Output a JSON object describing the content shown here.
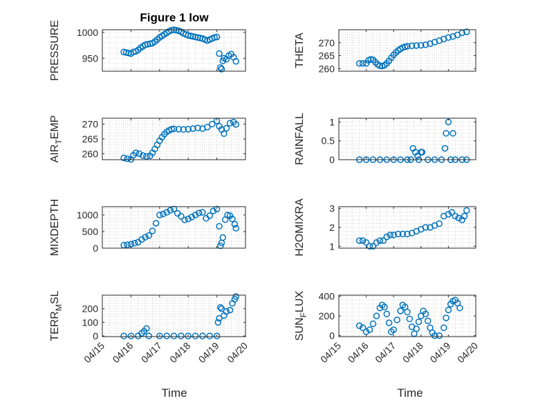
{
  "figure": {
    "title": "Figure 1 low",
    "xlabel": "Time",
    "marker_color": "#0072BD"
  },
  "chart_data": [
    {
      "type": "scatter",
      "title": "Figure 1 low",
      "ylabel": "PRESSURE",
      "xlim": [
        "04/15",
        "04/20"
      ],
      "ylim": [
        925,
        1005
      ],
      "yticks": [
        950,
        1000
      ],
      "yticklabels": [
        "950",
        "1000"
      ],
      "grid": true,
      "points": [
        [
          "04/15 18:00",
          962
        ],
        [
          "04/15 20:00",
          961
        ],
        [
          "04/15 22:00",
          960
        ],
        [
          "04/16 00:00",
          959
        ],
        [
          "04/16 02:00",
          962
        ],
        [
          "04/16 04:00",
          963
        ],
        [
          "04/16 06:00",
          966
        ],
        [
          "04/16 08:00",
          970
        ],
        [
          "04/16 10:00",
          973
        ],
        [
          "04/16 12:00",
          976
        ],
        [
          "04/16 14:00",
          977
        ],
        [
          "04/16 16:00",
          978
        ],
        [
          "04/16 18:00",
          979
        ],
        [
          "04/16 20:00",
          982
        ],
        [
          "04/16 22:00",
          986
        ],
        [
          "04/17 00:00",
          990
        ],
        [
          "04/17 02:00",
          993
        ],
        [
          "04/17 04:00",
          996
        ],
        [
          "04/17 06:00",
          999
        ],
        [
          "04/17 08:00",
          1002
        ],
        [
          "04/17 10:00",
          1004
        ],
        [
          "04/17 12:00",
          1005
        ],
        [
          "04/17 14:00",
          1004
        ],
        [
          "04/17 16:00",
          1003
        ],
        [
          "04/17 18:00",
          1001
        ],
        [
          "04/17 20:00",
          998
        ],
        [
          "04/17 22:00",
          996
        ],
        [
          "04/18 00:00",
          994
        ],
        [
          "04/18 02:00",
          993
        ],
        [
          "04/18 04:00",
          992
        ],
        [
          "04/18 06:00",
          991
        ],
        [
          "04/18 08:00",
          990
        ],
        [
          "04/18 10:00",
          989
        ],
        [
          "04/18 12:00",
          988
        ],
        [
          "04/18 14:00",
          986
        ],
        [
          "04/18 16:00",
          984
        ],
        [
          "04/18 18:00",
          986
        ],
        [
          "04/18 20:00",
          988
        ],
        [
          "04/18 22:00",
          990
        ],
        [
          "04/19 00:00",
          991
        ],
        [
          "04/19 02:00",
          959
        ],
        [
          "04/19 03:00",
          932
        ],
        [
          "04/19 04:00",
          929
        ],
        [
          "04/19 05:00",
          945
        ],
        [
          "04/19 06:00",
          950
        ],
        [
          "04/19 08:00",
          948
        ],
        [
          "04/19 10:00",
          955
        ],
        [
          "04/19 12:00",
          958
        ],
        [
          "04/19 14:00",
          952
        ],
        [
          "04/19 16:00",
          944
        ]
      ]
    },
    {
      "type": "scatter",
      "ylabel": "THETA",
      "xlim": [
        "04/15",
        "04/20"
      ],
      "ylim": [
        259,
        275
      ],
      "yticks": [
        260,
        265,
        270
      ],
      "yticklabels": [
        "260",
        "265",
        "270"
      ],
      "grid": true,
      "points": [
        [
          "04/15 18:00",
          262
        ],
        [
          "04/15 21:00",
          262
        ],
        [
          "04/16 00:00",
          262
        ],
        [
          "04/16 02:00",
          263.2
        ],
        [
          "04/16 04:00",
          263.6
        ],
        [
          "04/16 06:00",
          263.4
        ],
        [
          "04/16 08:00",
          262.5
        ],
        [
          "04/16 10:00",
          261.6
        ],
        [
          "04/16 12:00",
          261.1
        ],
        [
          "04/16 14:00",
          261.0
        ],
        [
          "04/16 16:00",
          261.3
        ],
        [
          "04/16 18:00",
          262.0
        ],
        [
          "04/16 20:00",
          263.0
        ],
        [
          "04/16 22:00",
          264.2
        ],
        [
          "04/17 00:00",
          265.3
        ],
        [
          "04/17 02:00",
          266.2
        ],
        [
          "04/17 04:00",
          267.0
        ],
        [
          "04/17 06:00",
          267.6
        ],
        [
          "04/17 08:00",
          268.1
        ],
        [
          "04/17 10:00",
          268.4
        ],
        [
          "04/17 12:00",
          268.6
        ],
        [
          "04/17 16:00",
          268.8
        ],
        [
          "04/17 20:00",
          268.9
        ],
        [
          "04/18 00:00",
          269.0
        ],
        [
          "04/18 04:00",
          269.2
        ],
        [
          "04/18 08:00",
          269.6
        ],
        [
          "04/18 12:00",
          270.2
        ],
        [
          "04/18 16:00",
          270.8
        ],
        [
          "04/18 20:00",
          271.4
        ],
        [
          "04/19 00:00",
          272.0
        ],
        [
          "04/19 04:00",
          272.4
        ],
        [
          "04/19 08:00",
          273.0
        ],
        [
          "04/19 12:00",
          273.8
        ],
        [
          "04/19 16:00",
          274.2
        ]
      ]
    },
    {
      "type": "scatter",
      "ylabel": "AIR_TEMP",
      "xlim": [
        "04/15",
        "04/20"
      ],
      "ylim": [
        258,
        272
      ],
      "yticks": [
        260,
        265,
        270
      ],
      "yticklabels": [
        "260",
        "265",
        "270"
      ],
      "grid": true,
      "points": [
        [
          "04/15 18:00",
          258.6
        ],
        [
          "04/15 21:00",
          258.3
        ],
        [
          "04/16 00:00",
          258.1
        ],
        [
          "04/16 02:00",
          259.5
        ],
        [
          "04/16 04:00",
          260.3
        ],
        [
          "04/16 07:00",
          260.0
        ],
        [
          "04/16 10:00",
          259.4
        ],
        [
          "04/16 13:00",
          259.1
        ],
        [
          "04/16 16:00",
          259.3
        ],
        [
          "04/16 18:00",
          260.3
        ],
        [
          "04/16 20:00",
          261.6
        ],
        [
          "04/16 22:00",
          263.0
        ],
        [
          "04/17 00:00",
          264.4
        ],
        [
          "04/17 02:00",
          265.6
        ],
        [
          "04/17 04:00",
          266.6
        ],
        [
          "04/17 06:00",
          267.4
        ],
        [
          "04/17 08:00",
          267.9
        ],
        [
          "04/17 10:00",
          268.3
        ],
        [
          "04/17 12:00",
          268.4
        ],
        [
          "04/17 16:00",
          268.3
        ],
        [
          "04/17 20:00",
          268.2
        ],
        [
          "04/18 00:00",
          268.3
        ],
        [
          "04/18 04:00",
          268.5
        ],
        [
          "04/18 08:00",
          268.7
        ],
        [
          "04/18 12:00",
          268.5
        ],
        [
          "04/18 16:00",
          269.0
        ],
        [
          "04/18 20:00",
          270.0
        ],
        [
          "04/19 00:00",
          271.1
        ],
        [
          "04/19 02:00",
          269.3
        ],
        [
          "04/19 04:00",
          268.2
        ],
        [
          "04/19 06:00",
          266.8
        ],
        [
          "04/19 08:00",
          268.6
        ],
        [
          "04/19 11:00",
          270.3
        ],
        [
          "04/19 14:00",
          270.7
        ],
        [
          "04/19 16:00",
          269.9
        ]
      ]
    },
    {
      "type": "scatter",
      "ylabel": "RAINFALL",
      "xlim": [
        "04/15",
        "04/20"
      ],
      "ylim": [
        0,
        1.1
      ],
      "yticks": [
        0,
        0.5,
        1
      ],
      "yticklabels": [
        "0",
        "0.5",
        "1"
      ],
      "grid": true,
      "points": [
        [
          "04/15 18:00",
          0
        ],
        [
          "04/16 00:00",
          0
        ],
        [
          "04/16 06:00",
          0
        ],
        [
          "04/16 12:00",
          0
        ],
        [
          "04/16 18:00",
          0
        ],
        [
          "04/17 00:00",
          0
        ],
        [
          "04/17 06:00",
          0
        ],
        [
          "04/17 12:00",
          0
        ],
        [
          "04/17 15:00",
          0
        ],
        [
          "04/17 17:00",
          0.3
        ],
        [
          "04/17 19:00",
          0.2
        ],
        [
          "04/17 21:00",
          0.1
        ],
        [
          "04/17 22:00",
          0
        ],
        [
          "04/18 00:00",
          0.2
        ],
        [
          "04/18 01:00",
          0.2
        ],
        [
          "04/18 06:00",
          0
        ],
        [
          "04/18 12:00",
          0
        ],
        [
          "04/18 18:00",
          0
        ],
        [
          "04/18 21:00",
          0.3
        ],
        [
          "04/18 22:00",
          0.7
        ],
        [
          "04/19 00:00",
          1.0
        ],
        [
          "04/19 02:00",
          0
        ],
        [
          "04/19 04:00",
          0.7
        ],
        [
          "04/19 06:00",
          0
        ],
        [
          "04/19 12:00",
          0
        ],
        [
          "04/19 16:00",
          0
        ]
      ]
    },
    {
      "type": "scatter",
      "ylabel": "MIXDEPTH",
      "xlim": [
        "04/15",
        "04/20"
      ],
      "ylim": [
        0,
        1250
      ],
      "yticks": [
        0,
        500,
        1000
      ],
      "yticklabels": [
        "0",
        "500",
        "1000"
      ],
      "grid": true,
      "points": [
        [
          "04/15 18:00",
          90
        ],
        [
          "04/15 21:00",
          100
        ],
        [
          "04/16 00:00",
          120
        ],
        [
          "04/16 03:00",
          150
        ],
        [
          "04/16 06:00",
          180
        ],
        [
          "04/16 09:00",
          260
        ],
        [
          "04/16 12:00",
          330
        ],
        [
          "04/16 15:00",
          380
        ],
        [
          "04/16 18:00",
          520
        ],
        [
          "04/16 21:00",
          750
        ],
        [
          "04/17 00:00",
          1000
        ],
        [
          "04/17 03:00",
          1030
        ],
        [
          "04/17 06:00",
          1080
        ],
        [
          "04/17 09:00",
          1140
        ],
        [
          "04/17 12:00",
          1180
        ],
        [
          "04/17 15:00",
          1050
        ],
        [
          "04/17 18:00",
          960
        ],
        [
          "04/17 21:00",
          850
        ],
        [
          "04/18 00:00",
          880
        ],
        [
          "04/18 03:00",
          940
        ],
        [
          "04/18 06:00",
          1000
        ],
        [
          "04/18 09:00",
          1060
        ],
        [
          "04/18 12:00",
          1080
        ],
        [
          "04/18 15:00",
          900
        ],
        [
          "04/18 18:00",
          980
        ],
        [
          "04/18 21:00",
          1120
        ],
        [
          "04/19 00:00",
          1180
        ],
        [
          "04/19 02:00",
          660
        ],
        [
          "04/19 03:00",
          70
        ],
        [
          "04/19 04:00",
          160
        ],
        [
          "04/19 05:00",
          320
        ],
        [
          "04/19 07:00",
          860
        ],
        [
          "04/19 09:00",
          1000
        ],
        [
          "04/19 11:00",
          980
        ],
        [
          "04/19 13:00",
          880
        ],
        [
          "04/19 15:00",
          720
        ],
        [
          "04/19 16:00",
          600
        ]
      ]
    },
    {
      "type": "scatter",
      "ylabel": "H2OMIXRA",
      "xlim": [
        "04/15",
        "04/20"
      ],
      "ylim": [
        0.9,
        3.1
      ],
      "yticks": [
        1,
        2,
        3
      ],
      "yticklabels": [
        "1",
        "2",
        "3"
      ],
      "grid": true,
      "points": [
        [
          "04/15 18:00",
          1.3
        ],
        [
          "04/15 21:00",
          1.3
        ],
        [
          "04/16 00:00",
          1.2
        ],
        [
          "04/16 03:00",
          1.0
        ],
        [
          "04/16 06:00",
          1.0
        ],
        [
          "04/16 09:00",
          1.2
        ],
        [
          "04/16 12:00",
          1.3
        ],
        [
          "04/16 15:00",
          1.3
        ],
        [
          "04/16 18:00",
          1.5
        ],
        [
          "04/16 21:00",
          1.6
        ],
        [
          "04/17 00:00",
          1.6
        ],
        [
          "04/17 04:00",
          1.65
        ],
        [
          "04/17 08:00",
          1.65
        ],
        [
          "04/17 12:00",
          1.65
        ],
        [
          "04/17 16:00",
          1.7
        ],
        [
          "04/17 20:00",
          1.8
        ],
        [
          "04/18 00:00",
          1.9
        ],
        [
          "04/18 04:00",
          2.0
        ],
        [
          "04/18 08:00",
          2.0
        ],
        [
          "04/18 12:00",
          2.1
        ],
        [
          "04/18 16:00",
          2.2
        ],
        [
          "04/18 20:00",
          2.6
        ],
        [
          "04/19 00:00",
          2.7
        ],
        [
          "04/19 03:00",
          2.8
        ],
        [
          "04/19 06:00",
          2.6
        ],
        [
          "04/19 09:00",
          2.5
        ],
        [
          "04/19 12:00",
          2.4
        ],
        [
          "04/19 14:00",
          2.6
        ],
        [
          "04/19 16:00",
          2.9
        ]
      ]
    },
    {
      "type": "scatter",
      "ylabel": "TERR_MSL",
      "xlim": [
        "04/15",
        "04/20"
      ],
      "ylim": [
        -5,
        300
      ],
      "yticks": [
        0,
        100,
        200
      ],
      "yticklabels": [
        "0",
        "100",
        "200"
      ],
      "grid": true,
      "points": [
        [
          "04/15 18:00",
          0
        ],
        [
          "04/16 00:00",
          0
        ],
        [
          "04/16 06:00",
          0
        ],
        [
          "04/16 09:00",
          20
        ],
        [
          "04/16 11:00",
          35
        ],
        [
          "04/16 13:00",
          55
        ],
        [
          "04/16 15:00",
          0
        ],
        [
          "04/17 00:00",
          0
        ],
        [
          "04/17 06:00",
          0
        ],
        [
          "04/17 12:00",
          0
        ],
        [
          "04/17 18:00",
          0
        ],
        [
          "04/18 00:00",
          0
        ],
        [
          "04/18 06:00",
          0
        ],
        [
          "04/18 12:00",
          0
        ],
        [
          "04/18 18:00",
          0
        ],
        [
          "04/19 00:00",
          0
        ],
        [
          "04/19 01:00",
          100
        ],
        [
          "04/19 02:00",
          130
        ],
        [
          "04/19 03:00",
          210
        ],
        [
          "04/19 04:00",
          200
        ],
        [
          "04/19 06:00",
          150
        ],
        [
          "04/19 08:00",
          180
        ],
        [
          "04/19 11:00",
          190
        ],
        [
          "04/19 13:00",
          240
        ],
        [
          "04/19 15:00",
          270
        ],
        [
          "04/19 16:00",
          290
        ]
      ]
    },
    {
      "type": "scatter",
      "ylabel": "SUN_FLUX",
      "xlim": [
        "04/15",
        "04/20"
      ],
      "ylim": [
        -10,
        410
      ],
      "yticks": [
        0,
        200,
        400
      ],
      "yticklabels": [
        "0",
        "200",
        "400"
      ],
      "grid": true,
      "points": [
        [
          "04/15 18:00",
          100
        ],
        [
          "04/15 21:00",
          80
        ],
        [
          "04/16 00:00",
          40
        ],
        [
          "04/16 03:00",
          60
        ],
        [
          "04/16 06:00",
          120
        ],
        [
          "04/16 09:00",
          200
        ],
        [
          "04/16 12:00",
          280
        ],
        [
          "04/16 14:00",
          310
        ],
        [
          "04/16 16:00",
          290
        ],
        [
          "04/16 18:00",
          220
        ],
        [
          "04/16 20:00",
          130
        ],
        [
          "04/16 22:00",
          40
        ],
        [
          "04/17 00:00",
          60
        ],
        [
          "04/17 03:00",
          160
        ],
        [
          "04/17 06:00",
          250
        ],
        [
          "04/17 08:00",
          310
        ],
        [
          "04/17 10:00",
          290
        ],
        [
          "04/17 12:00",
          240
        ],
        [
          "04/17 14:00",
          170
        ],
        [
          "04/17 16:00",
          90
        ],
        [
          "04/17 18:00",
          20
        ],
        [
          "04/17 20:00",
          70
        ],
        [
          "04/17 22:00",
          140
        ],
        [
          "04/18 00:00",
          200
        ],
        [
          "04/18 02:00",
          250
        ],
        [
          "04/18 04:00",
          220
        ],
        [
          "04/18 06:00",
          150
        ],
        [
          "04/18 08:00",
          80
        ],
        [
          "04/18 10:00",
          30
        ],
        [
          "04/18 12:00",
          0
        ],
        [
          "04/18 16:00",
          0
        ],
        [
          "04/18 20:00",
          80
        ],
        [
          "04/18 22:00",
          180
        ],
        [
          "04/19 00:00",
          260
        ],
        [
          "04/19 02:00",
          320
        ],
        [
          "04/19 04:00",
          350
        ],
        [
          "04/19 06:00",
          360
        ],
        [
          "04/19 08:00",
          330
        ],
        [
          "04/19 10:00",
          280
        ]
      ]
    }
  ]
}
